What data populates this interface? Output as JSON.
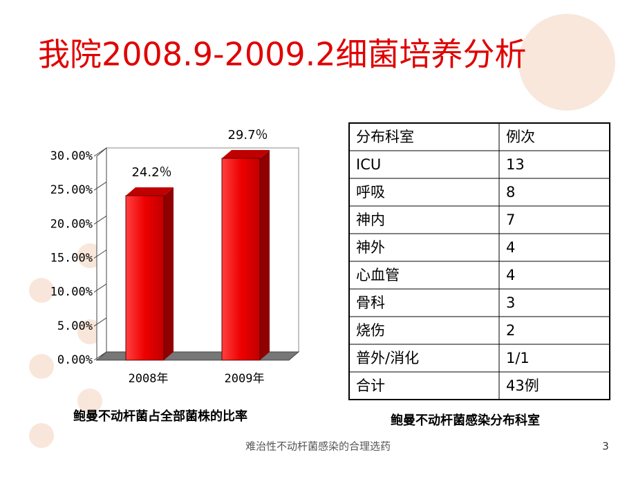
{
  "title": "我院2008.9-2009.2细菌培养分析",
  "chart_data": {
    "type": "bar",
    "categories": [
      "2008年",
      "2009年"
    ],
    "values": [
      24.2,
      29.7
    ],
    "value_labels": [
      "24.2％",
      "29.7％"
    ],
    "color": "#e00000",
    "ylim": [
      0,
      30
    ],
    "yticks": [
      {
        "value": 0,
        "label": "0.00%"
      },
      {
        "value": 5,
        "label": "5.00%"
      },
      {
        "value": 10,
        "label": "10.00%"
      },
      {
        "value": 15,
        "label": "15.00%"
      },
      {
        "value": 20,
        "label": "20.00%"
      },
      {
        "value": 25,
        "label": "25.00%"
      },
      {
        "value": 30,
        "label": "30.00%"
      }
    ],
    "grid": false,
    "caption": "鲍曼不动杆菌占全部菌株的比率"
  },
  "table": {
    "header": [
      "分布科室",
      "例次"
    ],
    "rows": [
      [
        "ICU",
        "13"
      ],
      [
        "呼吸",
        "8"
      ],
      [
        "神内",
        "7"
      ],
      [
        "神外",
        "4"
      ],
      [
        "心血管",
        "4"
      ],
      [
        "骨科",
        "3"
      ],
      [
        "烧伤",
        "2"
      ],
      [
        "普外/消化",
        "1/1"
      ],
      [
        "合计",
        "43例"
      ]
    ],
    "caption": "鲍曼不动杆菌感染分布科室"
  },
  "footer": "难治性不动杆菌感染的合理选药",
  "page_number": "3"
}
